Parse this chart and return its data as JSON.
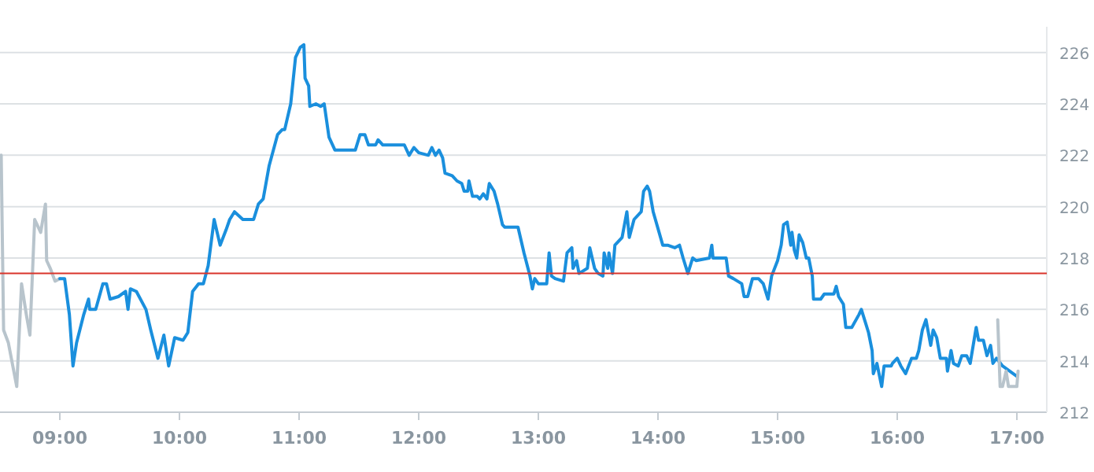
{
  "chart_data": {
    "type": "line",
    "xlim": [
      8.5,
      17.25
    ],
    "ylim": [
      212,
      227
    ],
    "xticks": [
      {
        "value": 9,
        "label": "09:00"
      },
      {
        "value": 10,
        "label": "10:00"
      },
      {
        "value": 11,
        "label": "11:00"
      },
      {
        "value": 12,
        "label": "12:00"
      },
      {
        "value": 13,
        "label": "13:00"
      },
      {
        "value": 14,
        "label": "14:00"
      },
      {
        "value": 15,
        "label": "15:00"
      },
      {
        "value": 16,
        "label": "16:00"
      },
      {
        "value": 17,
        "label": "17:00"
      }
    ],
    "yticks": [
      212,
      214,
      216,
      218,
      220,
      222,
      224,
      226
    ],
    "grid": "y",
    "marker": "none",
    "line_style": "solid",
    "ref_lines": [
      {
        "axis": "y",
        "value": 217.4,
        "color": "#d9342b"
      }
    ],
    "series": [
      {
        "color": "#b8c4cc",
        "x": [
          8.51,
          8.53,
          8.57,
          8.64,
          8.68,
          8.72,
          8.75,
          8.79,
          8.84,
          8.88,
          8.89,
          8.92,
          8.96,
          9.0
        ],
        "values": [
          222.0,
          215.2,
          214.7,
          213.0,
          217.0,
          215.8,
          215.0,
          219.5,
          219.0,
          220.1,
          217.9,
          217.6,
          217.1,
          217.2
        ]
      },
      {
        "color": "#1a8fdd",
        "x": [
          9.0,
          9.04,
          9.08,
          9.11,
          9.14,
          9.2,
          9.24,
          9.25,
          9.3,
          9.36,
          9.39,
          9.42,
          9.49,
          9.55,
          9.57,
          9.59,
          9.64,
          9.72,
          9.76,
          9.82,
          9.87,
          9.91,
          9.96,
          10.03,
          10.07,
          10.11,
          10.16,
          10.2,
          10.24,
          10.29,
          10.34,
          10.39,
          10.42,
          10.46,
          10.53,
          10.62,
          10.66,
          10.7,
          10.75,
          10.82,
          10.86,
          10.88,
          10.93,
          10.97,
          11.01,
          11.04,
          11.05,
          11.08,
          11.09,
          11.14,
          11.18,
          11.21,
          11.25,
          11.3,
          11.47,
          11.51,
          11.55,
          11.58,
          11.64,
          11.66,
          11.7,
          11.88,
          11.92,
          11.96,
          12.0,
          12.08,
          12.11,
          12.14,
          12.17,
          12.2,
          12.22,
          12.28,
          12.32,
          12.36,
          12.38,
          12.41,
          12.42,
          12.45,
          12.49,
          12.51,
          12.54,
          12.57,
          12.59,
          12.63,
          12.66,
          12.7,
          12.72,
          12.83,
          12.88,
          12.93,
          12.95,
          12.97,
          13.0,
          13.07,
          13.09,
          13.11,
          13.14,
          13.21,
          13.24,
          13.28,
          13.29,
          13.32,
          13.34,
          13.41,
          13.43,
          13.47,
          13.5,
          13.54,
          13.55,
          13.58,
          13.59,
          13.62,
          13.64,
          13.7,
          13.74,
          13.76,
          13.8,
          13.86,
          13.88,
          13.91,
          13.93,
          13.96,
          14.04,
          14.08,
          14.14,
          14.18,
          14.21,
          14.25,
          14.29,
          14.32,
          14.43,
          14.45,
          14.46,
          14.57,
          14.59,
          14.63,
          14.7,
          14.72,
          14.75,
          14.79,
          14.84,
          14.88,
          14.92,
          14.95,
          15.0,
          15.03,
          15.05,
          15.08,
          15.11,
          15.12,
          15.14,
          15.16,
          15.18,
          15.21,
          15.24,
          15.26,
          15.29,
          15.3,
          15.36,
          15.39,
          15.47,
          15.49,
          15.51,
          15.55,
          15.57,
          15.62,
          15.68,
          15.7,
          15.74,
          15.76,
          15.79,
          15.8,
          15.83,
          15.87,
          15.89,
          15.95,
          15.96,
          16.0,
          16.03,
          16.07,
          16.12,
          16.16,
          16.18,
          16.21,
          16.24,
          16.26,
          16.28,
          16.3,
          16.33,
          16.36,
          16.41,
          16.42,
          16.45,
          16.47,
          16.51,
          16.54,
          16.58,
          16.61,
          16.66,
          16.68,
          16.72,
          16.75,
          16.78,
          16.8,
          16.83,
          16.88,
          17.0
        ],
        "values": [
          217.2,
          217.2,
          215.8,
          213.8,
          214.7,
          215.8,
          216.4,
          216.0,
          216.0,
          217.0,
          217.0,
          216.4,
          216.5,
          216.7,
          216.0,
          216.8,
          216.7,
          216.0,
          215.2,
          214.1,
          215.0,
          213.8,
          214.9,
          214.8,
          215.1,
          216.7,
          217.0,
          217.0,
          217.7,
          219.5,
          218.5,
          219.1,
          219.5,
          219.8,
          219.5,
          219.5,
          220.1,
          220.3,
          221.6,
          222.8,
          223.0,
          223.0,
          224.0,
          225.8,
          226.2,
          226.3,
          225.0,
          224.7,
          223.9,
          224.0,
          223.9,
          224.0,
          222.7,
          222.2,
          222.2,
          222.8,
          222.8,
          222.4,
          222.4,
          222.6,
          222.4,
          222.4,
          222.0,
          222.3,
          222.1,
          222.0,
          222.3,
          222.0,
          222.2,
          221.9,
          221.3,
          221.2,
          221.0,
          220.9,
          220.6,
          220.6,
          221.0,
          220.4,
          220.4,
          220.3,
          220.5,
          220.3,
          220.9,
          220.6,
          220.1,
          219.3,
          219.2,
          219.2,
          218.2,
          217.3,
          216.8,
          217.2,
          217.0,
          217.0,
          218.2,
          217.3,
          217.2,
          217.1,
          218.2,
          218.4,
          217.6,
          217.9,
          217.4,
          217.6,
          218.4,
          217.6,
          217.4,
          217.3,
          218.2,
          217.6,
          218.2,
          217.4,
          218.5,
          218.8,
          219.8,
          218.8,
          219.5,
          219.8,
          220.6,
          220.8,
          220.6,
          219.8,
          218.5,
          218.5,
          218.4,
          218.5,
          218.0,
          217.4,
          218.0,
          217.9,
          218.0,
          218.5,
          218.0,
          218.0,
          217.3,
          217.2,
          217.0,
          216.5,
          216.5,
          217.2,
          217.2,
          217.0,
          216.4,
          217.3,
          217.9,
          218.5,
          219.3,
          219.4,
          218.5,
          219.0,
          218.3,
          218.0,
          218.9,
          218.6,
          218.0,
          218.0,
          217.3,
          216.4,
          216.4,
          216.6,
          216.6,
          216.9,
          216.5,
          216.2,
          215.3,
          215.3,
          215.8,
          216.0,
          215.4,
          215.1,
          214.4,
          213.5,
          213.9,
          213.0,
          213.8,
          213.8,
          213.9,
          214.1,
          213.8,
          213.5,
          214.1,
          214.1,
          214.4,
          215.2,
          215.6,
          215.1,
          214.6,
          215.2,
          214.9,
          214.1,
          214.1,
          213.6,
          214.4,
          213.9,
          213.8,
          214.2,
          214.2,
          213.9,
          215.3,
          214.8,
          214.8,
          214.2,
          214.6,
          213.9,
          214.1,
          213.8,
          213.4
        ]
      },
      {
        "color": "#b8c4cc",
        "x": [
          16.84,
          16.86,
          16.88,
          16.91,
          16.93,
          17.0,
          17.01
        ],
        "values": [
          215.6,
          213.0,
          213.0,
          213.6,
          213.0,
          213.0,
          213.6
        ]
      }
    ]
  }
}
